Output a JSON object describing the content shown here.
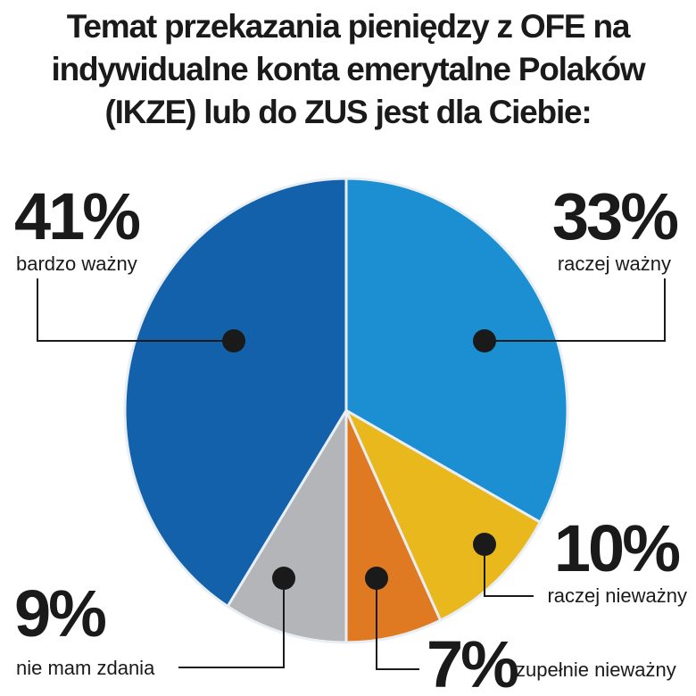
{
  "chart_data": {
    "type": "pie",
    "title": "Temat przekazania pieniędzy z OFE na indywidualne konta emerytalne Polaków (IKZE) lub do ZUS jest dla Ciebie:",
    "categories": [
      "raczej ważny",
      "raczej nieważny",
      "zupełnie nieważny",
      "nie mam zdania",
      "bardzo ważny"
    ],
    "values": [
      33,
      10,
      7,
      9,
      41
    ],
    "value_labels": [
      "33%",
      "10%",
      "7%",
      "9%",
      "41%"
    ],
    "colors": [
      "#1b8fd2",
      "#e9b81c",
      "#e07a22",
      "#b3b5b8",
      "#1461ab"
    ]
  }
}
